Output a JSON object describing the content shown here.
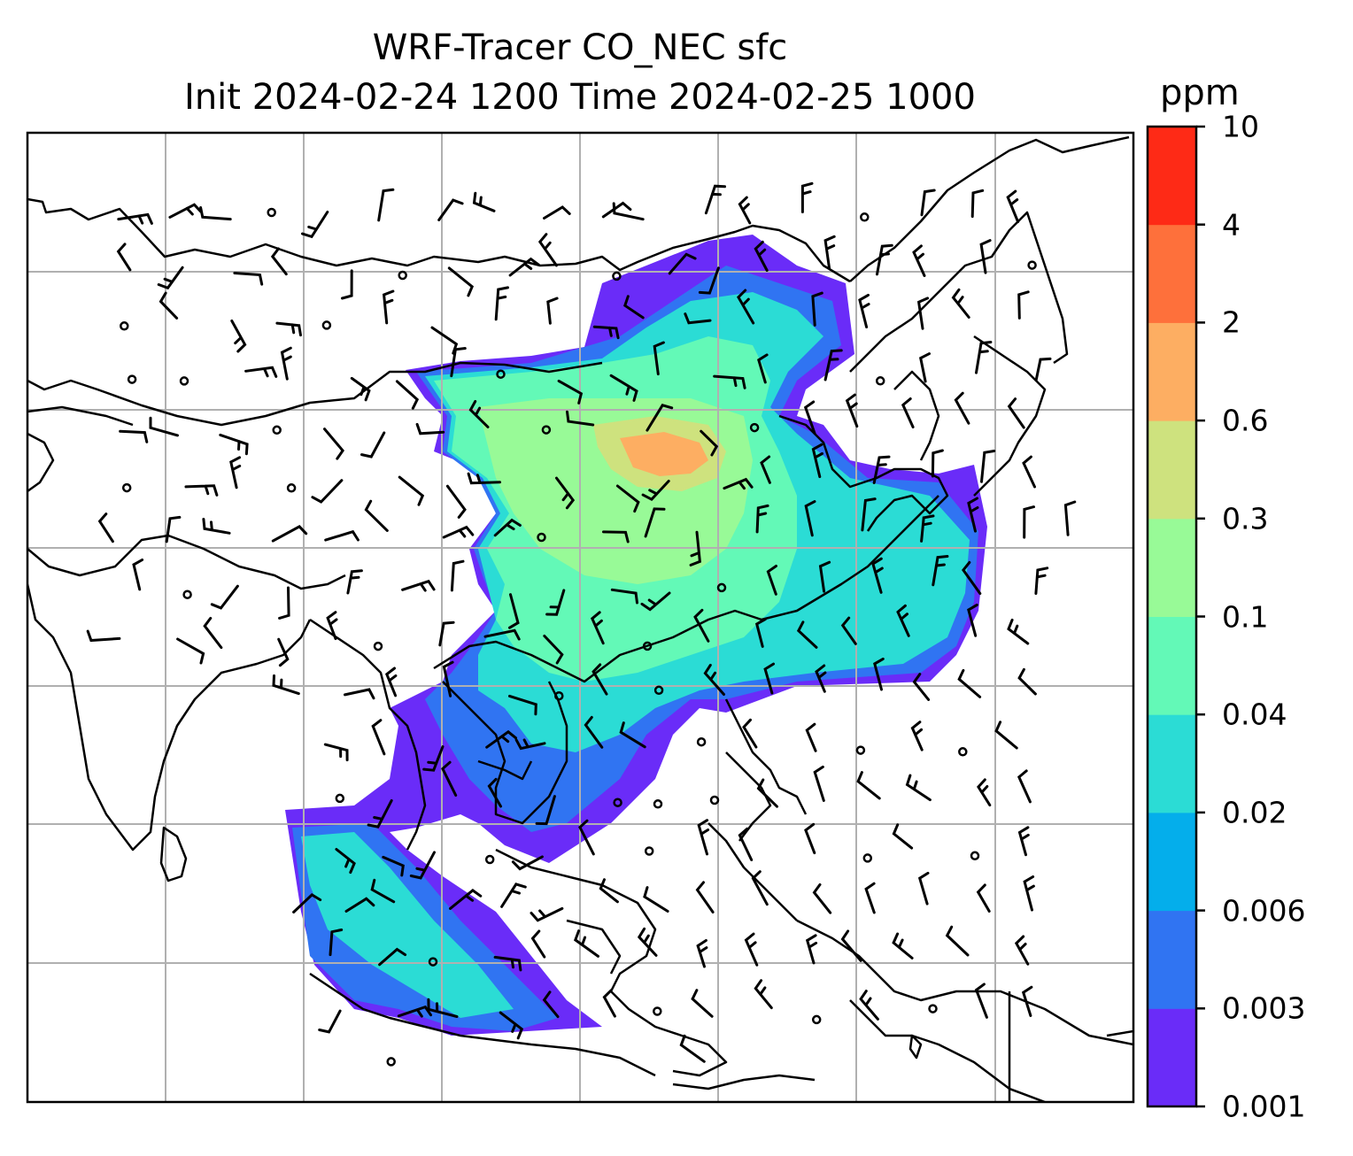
{
  "title_line1": "WRF-Tracer CO_NEC sfc",
  "title_line2": "Init 2024-02-24 1200 Time 2024-02-25 1000",
  "colorbar": {
    "unit": "ppm",
    "levels": [
      "0.001",
      "0.003",
      "0.006",
      "0.02",
      "0.04",
      "0.1",
      "0.3",
      "0.6",
      "2",
      "4",
      "10"
    ],
    "colors": [
      "#6a2cf8",
      "#3074f2",
      "#04aeeb",
      "#2bdcd5",
      "#63f9b7",
      "#98fa97",
      "#cee27e",
      "#fdae62",
      "#fe703b",
      "#fe2a16"
    ]
  },
  "map": {
    "grid": "on",
    "grid_color": "#b0b0b0",
    "concentration_colors": {
      "low": "#6a2cf8",
      "low_mid": "#3074f2",
      "mid": "#2bdcd5",
      "mid_high": "#63f9b7",
      "high": "#98fa97",
      "higher": "#cee27e",
      "peak": "#fdae62"
    }
  }
}
